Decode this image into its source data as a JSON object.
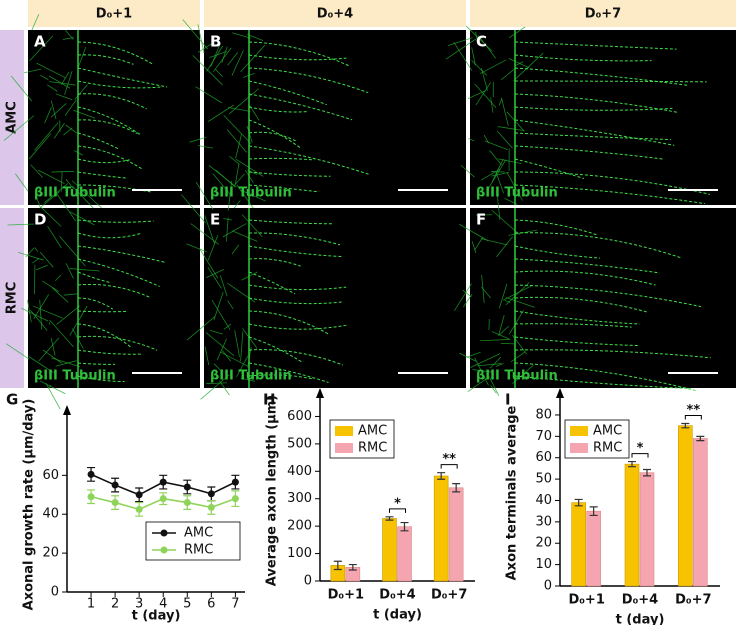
{
  "panels": {
    "columns": [
      "D₀+1",
      "D₀+4",
      "D₀+7"
    ],
    "rows": [
      "AMC",
      "RMC"
    ],
    "letters": [
      "A",
      "B",
      "C",
      "D",
      "E",
      "F"
    ],
    "stain": "βIII Tubulin"
  },
  "chart_data": [
    {
      "type": "line",
      "panel": "G",
      "ylabel": "Axonal growth rate (μm/day)",
      "xlabel": "t (day)",
      "x": [
        1,
        2,
        3,
        4,
        5,
        6,
        7
      ],
      "xlim": [
        0,
        7.4
      ],
      "xticks": [
        1,
        2,
        3,
        4,
        5,
        6,
        7
      ],
      "ylim": [
        0,
        90
      ],
      "yticks": [
        0,
        20,
        40,
        60
      ],
      "series": [
        {
          "name": "AMC",
          "color": "#111111",
          "values": [
            60.5,
            55,
            50,
            56.5,
            54,
            50.5,
            56.5
          ],
          "errors": [
            3.5,
            3.5,
            3.5,
            3.5,
            3.5,
            3.5,
            3.5
          ]
        },
        {
          "name": "RMC",
          "color": "#8fd45a",
          "values": [
            49,
            46,
            42.5,
            48,
            46,
            43.5,
            48
          ],
          "errors": [
            3.5,
            3.5,
            3.5,
            3,
            3.5,
            3.5,
            4
          ]
        }
      ]
    },
    {
      "type": "bar",
      "panel": "H",
      "ylabel": "Average axon length (μm)",
      "xlabel": "t (day)",
      "categories": [
        "D₀+1",
        "D₀+4",
        "D₀+7"
      ],
      "ylim": [
        0,
        660
      ],
      "yticks": [
        0,
        100,
        200,
        300,
        400,
        500,
        600
      ],
      "series": [
        {
          "name": "AMC",
          "color": "#f7c200",
          "values": [
            57,
            228,
            383
          ],
          "errors": [
            15,
            6,
            12
          ]
        },
        {
          "name": "RMC",
          "color": "#f4a5b0",
          "values": [
            50,
            198,
            340
          ],
          "errors": [
            10,
            15,
            15
          ]
        }
      ],
      "annotations": [
        "*",
        "**"
      ]
    },
    {
      "type": "bar",
      "panel": "I",
      "ylabel": "Axon terminals average",
      "xlabel": "t (day)",
      "categories": [
        "D₀+1",
        "D₀+4",
        "D₀+7"
      ],
      "ylim": [
        0,
        87
      ],
      "yticks": [
        0,
        10,
        20,
        30,
        40,
        50,
        60,
        70,
        80
      ],
      "series": [
        {
          "name": "AMC",
          "color": "#f7c200",
          "values": [
            39,
            57,
            75
          ],
          "errors": [
            1.5,
            1.2,
            1
          ]
        },
        {
          "name": "RMC",
          "color": "#f4a5b0",
          "values": [
            35,
            53,
            69
          ],
          "errors": [
            2,
            1.5,
            1
          ]
        }
      ],
      "annotations": [
        "*",
        "**"
      ]
    }
  ]
}
